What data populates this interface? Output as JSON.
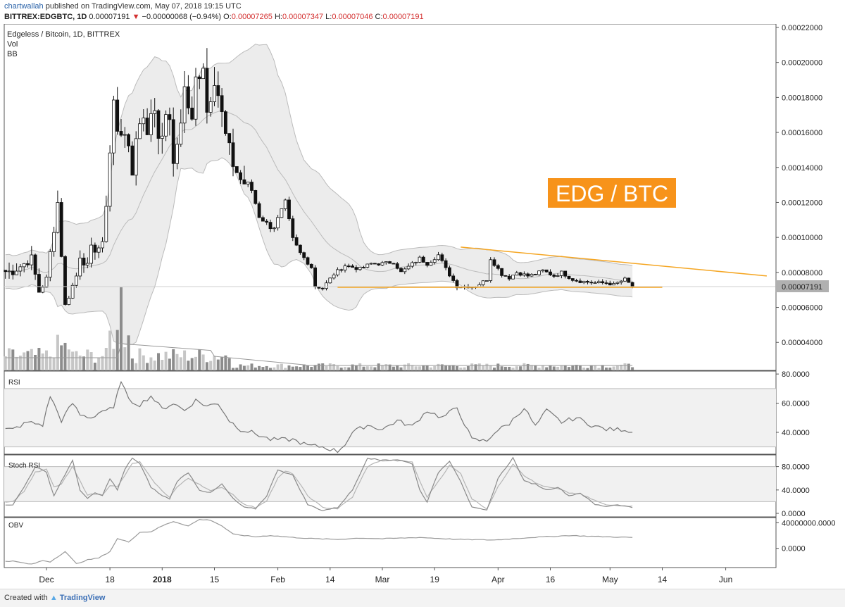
{
  "header": {
    "author": "chartwallah",
    "published_text": "published on TradingView.com, May 07, 2018 19:15 UTC",
    "symbol": "BITTREX:EDGBTC, 1D",
    "last": "0.00007191",
    "change_arrow": "▼",
    "change": "−0.00000068 (−0.94%)",
    "o_label": "O:",
    "o_value": "0.00007265",
    "h_label": "H:",
    "h_value": "0.00007347",
    "l_label": "L:",
    "l_value": "0.00007046",
    "c_label": "C:",
    "c_value": "0.00007191"
  },
  "legend": {
    "main": "Edgeless / Bitcoin, 1D, BITTREX",
    "vol": "Vol",
    "bb": "BB"
  },
  "annotation": {
    "text": "EDG / BTC",
    "bg": "#f7931a",
    "fg": "#ffffff"
  },
  "last_price_tag": "0.00007191",
  "footer": {
    "created_with": "Created with",
    "brand": "TradingView"
  },
  "colors": {
    "candle_up": "#ffffff",
    "candle_down": "#111111",
    "bb_fill": "#ececec",
    "bb_line": "#bbbbbb",
    "trend_line": "#f5a623",
    "indicator_line": "#777777"
  },
  "chart_data": [
    {
      "type": "candlestick",
      "title": "Edgeless / Bitcoin, 1D, BITTREX",
      "y_ticks": [
        "0.00022000",
        "0.00020000",
        "0.00018000",
        "0.00016000",
        "0.00014000",
        "0.00012000",
        "0.00010000",
        "0.00008000",
        "0.00006000",
        "0.00004000"
      ],
      "ylim": [
        2.4e-05,
        0.000222
      ],
      "x_tick_labels": [
        "Dec",
        "18",
        "2018",
        "15",
        "Feb",
        "14",
        "Mar",
        "19",
        "Apr",
        "16",
        "May",
        "14",
        "Jun"
      ],
      "x_tick_days": [
        0,
        17,
        31,
        45,
        62,
        76,
        90,
        104,
        121,
        135,
        151,
        165,
        182
      ],
      "close_anchor_days": [
        -9,
        -4,
        -2,
        0,
        1,
        3,
        5,
        8,
        9,
        11,
        12,
        15,
        16,
        18,
        19,
        21,
        22,
        23,
        24,
        26,
        27,
        29,
        30,
        33,
        34,
        36,
        37,
        39,
        40,
        42,
        43,
        45,
        46,
        48,
        50,
        52,
        55,
        57,
        60,
        61,
        64,
        66,
        68,
        71,
        72,
        74,
        77,
        80,
        82,
        84,
        87,
        90,
        93,
        95,
        100,
        102,
        105,
        107,
        110,
        115,
        118,
        119,
        122,
        124,
        126,
        129,
        131,
        133,
        136,
        138,
        141,
        143,
        147,
        150,
        152,
        155,
        157
      ],
      "close_anchor_values": [
        8.05e-05,
        8.8e-05,
        6.9e-05,
        7.6e-05,
        9.1e-05,
        0.00012,
        6.1e-05,
        7.8e-05,
        9e-05,
        8.3e-05,
        9.3e-05,
        9.5e-05,
        0.00012,
        0.000178,
        0.000159,
        0.000162,
        0.000148,
        0.000136,
        0.000159,
        0.00017,
        0.000162,
        0.000174,
        0.000158,
        0.00017,
        0.000139,
        0.000168,
        0.000185,
        0.000165,
        0.00019,
        0.0002,
        0.000172,
        0.000192,
        0.000182,
        0.000158,
        0.000142,
        0.000133,
        0.000127,
        0.000112,
        0.000106,
        0.000106,
        0.00012,
        9.9e-05,
        9.1e-05,
        8.3e-05,
        7.2e-05,
        7.1e-05,
        7.9e-05,
        8.4e-05,
        8.3e-05,
        8.2e-05,
        8.5e-05,
        8.5e-05,
        8.6e-05,
        8e-05,
        8.8e-05,
        8.5e-05,
        9e-05,
        8.2e-05,
        7.2e-05,
        7.2e-05,
        7.6e-05,
        8.8e-05,
        7.9e-05,
        7.7e-05,
        8e-05,
        7.8e-05,
        7.9e-05,
        8.1e-05,
        7.8e-05,
        8e-05,
        7.6e-05,
        7.5e-05,
        7.4e-05,
        7.4e-05,
        7.3e-05,
        7.6e-05,
        7.19e-05
      ],
      "last_close": 7.191e-05,
      "trendlines": [
        {
          "name": "upper-resistance",
          "points": [
            [
              111,
              9.45e-05
            ],
            [
              193,
              7.8e-05
            ]
          ]
        },
        {
          "name": "lower-support",
          "points": [
            [
              78,
              7.15e-05
            ],
            [
              165,
              7.15e-05
            ]
          ]
        }
      ]
    },
    {
      "type": "line",
      "name": "RSI",
      "y_ticks": [
        "80.0000",
        "60.0000",
        "40.0000"
      ],
      "ylim": [
        25,
        82
      ],
      "band": [
        30,
        70
      ],
      "anchor_days": [
        -9,
        -5,
        -1,
        1,
        4,
        7,
        9,
        12,
        15,
        18,
        20,
        22,
        25,
        28,
        31,
        34,
        37,
        40,
        43,
        46,
        49,
        52,
        55,
        60,
        66,
        70,
        74,
        78,
        80,
        82,
        86,
        90,
        94,
        98,
        102,
        106,
        110,
        114,
        118,
        120,
        124,
        128,
        131,
        134,
        138,
        142,
        146,
        150,
        155,
        157
      ],
      "anchor_values": [
        42,
        47,
        45,
        65,
        48,
        60,
        52,
        50,
        55,
        56,
        76,
        62,
        59,
        65,
        56,
        60,
        55,
        62,
        58,
        60,
        48,
        42,
        40,
        35,
        35,
        31,
        30,
        27,
        32,
        40,
        45,
        42,
        48,
        44,
        55,
        50,
        57,
        35,
        34,
        40,
        46,
        57,
        44,
        55,
        47,
        50,
        45,
        42,
        42,
        40
      ]
    },
    {
      "type": "line",
      "name": "Stoch RSI",
      "y_ticks": [
        "80.0000",
        "40.0000",
        "0.0000"
      ],
      "ylim": [
        -6,
        100
      ],
      "band": [
        20,
        80
      ],
      "series": [
        {
          "name": "K",
          "anchor_days": [
            -9,
            -6,
            -3,
            0,
            2,
            4,
            7,
            9,
            11,
            13,
            15,
            17,
            19,
            21,
            23,
            25,
            28,
            31,
            33,
            35,
            38,
            41,
            44,
            47,
            50,
            53,
            56,
            59,
            62,
            64,
            66,
            70,
            74,
            78,
            82,
            86,
            90,
            94,
            98,
            100,
            102,
            105,
            108,
            111,
            114,
            118,
            121,
            125,
            128,
            131,
            134,
            137,
            140,
            143,
            147,
            150,
            153,
            157
          ],
          "anchor_values": [
            15,
            45,
            80,
            70,
            30,
            55,
            90,
            40,
            25,
            35,
            30,
            60,
            40,
            75,
            95,
            85,
            45,
            30,
            25,
            55,
            70,
            40,
            35,
            50,
            25,
            10,
            8,
            30,
            75,
            70,
            65,
            15,
            5,
            10,
            40,
            95,
            90,
            92,
            85,
            40,
            20,
            70,
            90,
            55,
            10,
            5,
            60,
            95,
            55,
            50,
            40,
            45,
            30,
            35,
            15,
            12,
            15,
            10
          ]
        },
        {
          "name": "D",
          "anchor_days": [
            -9,
            -6,
            -3,
            0,
            2,
            4,
            7,
            9,
            11,
            13,
            15,
            17,
            19,
            21,
            23,
            25,
            28,
            31,
            33,
            35,
            38,
            41,
            44,
            47,
            50,
            53,
            56,
            59,
            62,
            64,
            66,
            70,
            74,
            78,
            82,
            86,
            90,
            94,
            98,
            100,
            102,
            105,
            108,
            111,
            114,
            118,
            121,
            125,
            128,
            131,
            134,
            137,
            140,
            143,
            147,
            150,
            153,
            157
          ],
          "anchor_values": [
            20,
            38,
            70,
            75,
            45,
            50,
            80,
            55,
            32,
            33,
            32,
            48,
            45,
            65,
            85,
            88,
            60,
            38,
            28,
            45,
            60,
            50,
            38,
            45,
            32,
            15,
            10,
            22,
            60,
            72,
            68,
            30,
            10,
            8,
            28,
            80,
            92,
            90,
            88,
            55,
            28,
            55,
            82,
            68,
            25,
            8,
            45,
            85,
            65,
            52,
            45,
            42,
            35,
            33,
            22,
            14,
            14,
            12
          ]
        }
      ]
    },
    {
      "type": "line",
      "name": "OBV",
      "y_ticks": [
        "40000000.0000",
        "0.0000"
      ],
      "ylim": [
        -30000000,
        48000000
      ],
      "anchor_days": [
        -9,
        -4,
        -1,
        1,
        5,
        8,
        11,
        14,
        17,
        19,
        22,
        25,
        28,
        31,
        34,
        38,
        41,
        44,
        47,
        50,
        53,
        56,
        60,
        66,
        72,
        78,
        84,
        90,
        100,
        110,
        120,
        130,
        140,
        150,
        157
      ],
      "anchor_values": [
        -20000000,
        -25000000,
        -19000000,
        -21000000,
        -5000000,
        -24000000,
        -18000000,
        -15000000,
        -5000000,
        15000000,
        10000000,
        25000000,
        26000000,
        35000000,
        42000000,
        35000000,
        45000000,
        44000000,
        35000000,
        22000000,
        20000000,
        18000000,
        20000000,
        17000000,
        15000000,
        14000000,
        16000000,
        15000000,
        17000000,
        14000000,
        13000000,
        17000000,
        20000000,
        18000000,
        17000000
      ]
    }
  ]
}
